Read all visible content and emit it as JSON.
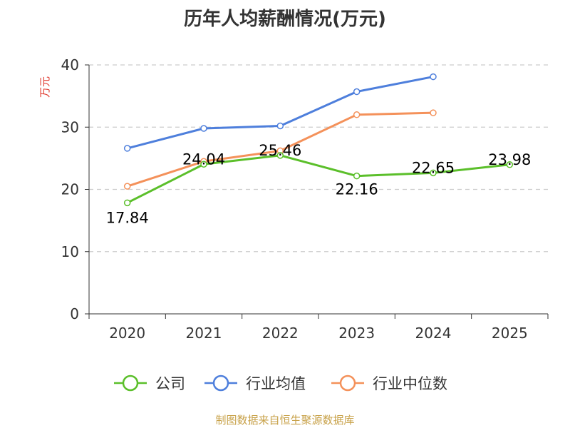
{
  "source_note": "制图数据来自恒生聚源数据库",
  "colors": {
    "company": "#5bbf2a",
    "industry_avg": "#4e7fdc",
    "industry_median": "#f4915a",
    "grid": "#cccccc",
    "axis": "#333333",
    "ylabel": "#e03c31"
  },
  "chart_data": {
    "type": "line",
    "title": "历年人均薪酬情况(万元)",
    "ylabel": "万元",
    "xlabel": "",
    "ylim": [
      0,
      40
    ],
    "yticks": [
      "0",
      "10",
      "20",
      "30",
      "40"
    ],
    "categories": [
      "2020",
      "2021",
      "2022",
      "2023",
      "2024",
      "2025"
    ],
    "series": [
      {
        "name": "公司",
        "key": "company",
        "values": [
          17.84,
          24.04,
          25.46,
          22.16,
          22.65,
          23.98
        ],
        "labels": [
          "17.84",
          "24.04",
          "25.46",
          "22.16",
          "22.65",
          "23.98"
        ]
      },
      {
        "name": "行业均值",
        "key": "industry_avg",
        "values": [
          26.6,
          29.8,
          30.2,
          35.7,
          38.1,
          null
        ]
      },
      {
        "name": "行业中位数",
        "key": "industry_median",
        "values": [
          20.5,
          24.5,
          26.2,
          32.0,
          32.3,
          null
        ]
      }
    ]
  }
}
